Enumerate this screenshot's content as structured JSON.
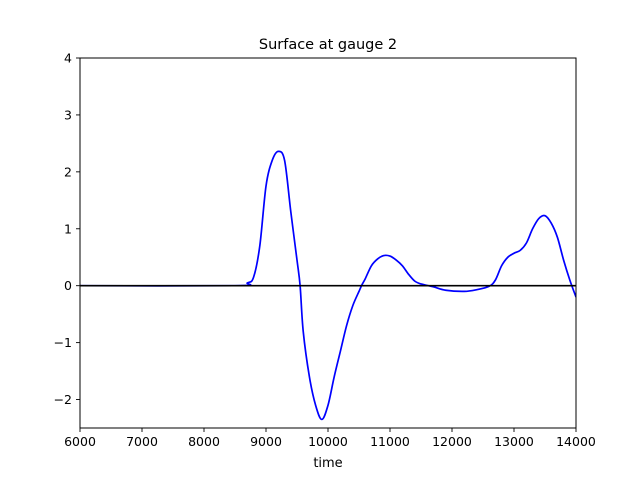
{
  "chart_data": {
    "type": "line",
    "title": "Surface at gauge 2",
    "xlabel": "time",
    "ylabel": "",
    "xlim": [
      6000,
      14000
    ],
    "ylim": [
      -2.5,
      4
    ],
    "xticks": [
      6000,
      7000,
      8000,
      9000,
      10000,
      11000,
      12000,
      13000,
      14000
    ],
    "yticks": [
      4,
      3,
      2,
      1,
      0,
      -1,
      -2
    ],
    "ytick_labels": [
      "4",
      "3",
      "2",
      "1",
      "0",
      "−1",
      "−2"
    ],
    "grid": false,
    "colors": {
      "series": "#0000ff",
      "reference": "#000000"
    },
    "reference_line": {
      "y": 0
    },
    "series": [
      {
        "x": [
          6000,
          8500,
          8700,
          8800,
          8900,
          9000,
          9100,
          9200,
          9300,
          9400,
          9500,
          9550,
          9600,
          9700,
          9800,
          9900,
          10000,
          10100,
          10200,
          10300,
          10400,
          10500,
          10550,
          10600,
          10700,
          10800,
          10900,
          11000,
          11100,
          11200,
          11300,
          11400,
          11500,
          11700,
          11900,
          12200,
          12400,
          12600,
          12700,
          12800,
          12900,
          13000,
          13100,
          13200,
          13300,
          13400,
          13500,
          13600,
          13700,
          13800,
          13900,
          14000
        ],
        "y": [
          0,
          0,
          0.05,
          0.15,
          0.7,
          1.75,
          2.2,
          2.36,
          2.2,
          1.3,
          0.45,
          0,
          -0.8,
          -1.6,
          -2.1,
          -2.35,
          -2.1,
          -1.6,
          -1.15,
          -0.7,
          -0.35,
          -0.1,
          0.02,
          0.12,
          0.35,
          0.47,
          0.53,
          0.52,
          0.45,
          0.35,
          0.2,
          0.08,
          0.03,
          -0.02,
          -0.08,
          -0.1,
          -0.07,
          -0.01,
          0.1,
          0.35,
          0.5,
          0.57,
          0.62,
          0.75,
          1.0,
          1.18,
          1.23,
          1.1,
          0.85,
          0.45,
          0.1,
          -0.2
        ]
      }
    ]
  }
}
